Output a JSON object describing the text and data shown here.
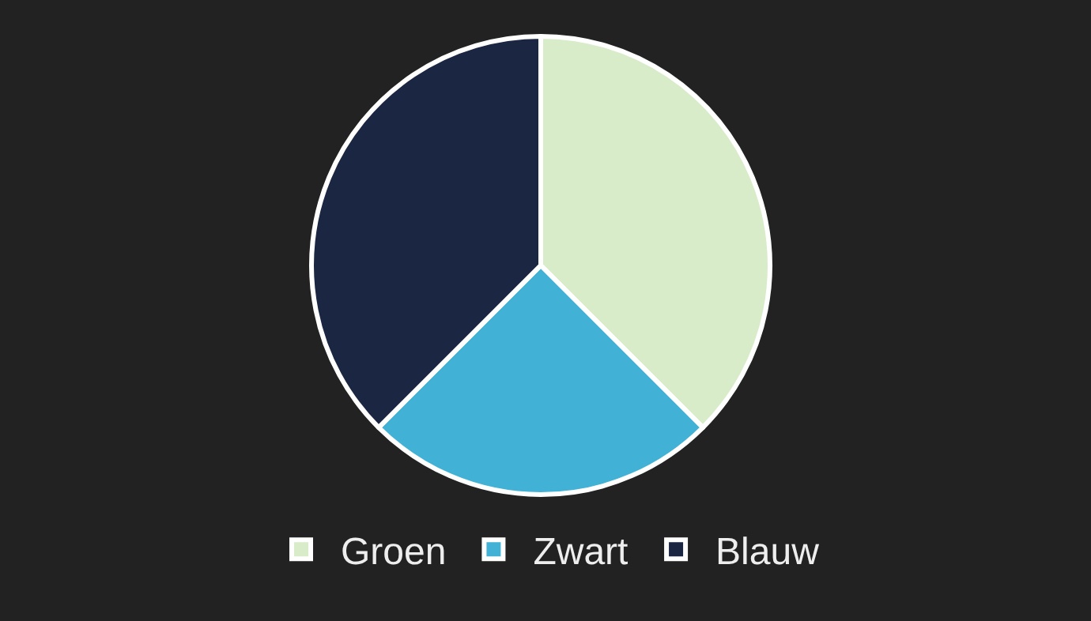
{
  "chart_data": {
    "type": "pie",
    "categories": [
      "Groen",
      "Zwart",
      "Blauw"
    ],
    "values": [
      37.5,
      25,
      37.5
    ],
    "colors": [
      "#d9ecc9",
      "#42b1d6",
      "#1b2642"
    ],
    "legend": "bottom"
  }
}
